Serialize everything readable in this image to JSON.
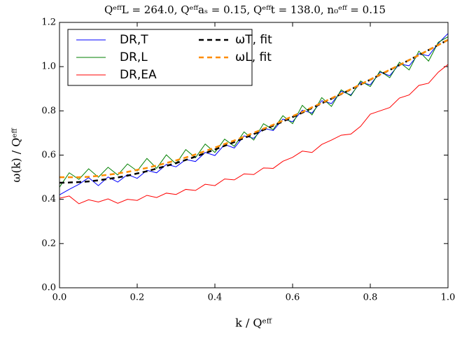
{
  "chart_data": {
    "type": "line",
    "title": "QᵉᶠᶠL = 264.0, Qᵉᶠᶠaₛ = 0.15, Qᵉᶠᶠt = 138.0, n₀ᵉᶠᶠ = 0.15",
    "xlabel": "k / Qᵉᶠᶠ",
    "ylabel": "ω(k) / Qᵉᶠᶠ",
    "x": [
      0,
      0.025,
      0.05,
      0.075,
      0.1,
      0.125,
      0.15,
      0.175,
      0.2,
      0.225,
      0.25,
      0.275,
      0.3,
      0.325,
      0.35,
      0.375,
      0.4,
      0.425,
      0.45,
      0.475,
      0.5,
      0.525,
      0.55,
      0.575,
      0.6,
      0.625,
      0.65,
      0.675,
      0.7,
      0.725,
      0.75,
      0.775,
      0.8,
      0.825,
      0.85,
      0.875,
      0.9,
      0.925,
      0.95,
      0.975,
      1.0
    ],
    "series": [
      {
        "name": "DR,T",
        "color": "#0000ff",
        "style": "solid",
        "values": [
          0.42,
          0.445,
          0.468,
          0.498,
          0.462,
          0.501,
          0.478,
          0.512,
          0.495,
          0.531,
          0.52,
          0.558,
          0.547,
          0.58,
          0.571,
          0.612,
          0.598,
          0.648,
          0.632,
          0.687,
          0.676,
          0.722,
          0.711,
          0.763,
          0.751,
          0.803,
          0.79,
          0.846,
          0.833,
          0.889,
          0.872,
          0.929,
          0.918,
          0.975,
          0.959,
          1.012,
          1.004,
          1.058,
          1.049,
          1.105,
          1.15
        ]
      },
      {
        "name": "DR,L",
        "color": "#008000",
        "style": "solid",
        "values": [
          0.455,
          0.52,
          0.49,
          0.538,
          0.5,
          0.545,
          0.51,
          0.56,
          0.528,
          0.585,
          0.54,
          0.601,
          0.56,
          0.625,
          0.588,
          0.65,
          0.612,
          0.672,
          0.64,
          0.705,
          0.668,
          0.742,
          0.715,
          0.778,
          0.742,
          0.825,
          0.782,
          0.86,
          0.82,
          0.895,
          0.868,
          0.935,
          0.91,
          0.98,
          0.95,
          1.02,
          0.985,
          1.07,
          1.025,
          1.11,
          1.135
        ]
      },
      {
        "name": "DR,EA",
        "color": "#ff0000",
        "style": "solid",
        "values": [
          0.405,
          0.415,
          0.38,
          0.398,
          0.388,
          0.402,
          0.382,
          0.4,
          0.395,
          0.418,
          0.408,
          0.428,
          0.422,
          0.445,
          0.44,
          0.468,
          0.462,
          0.492,
          0.488,
          0.515,
          0.512,
          0.542,
          0.54,
          0.572,
          0.59,
          0.618,
          0.612,
          0.648,
          0.668,
          0.69,
          0.695,
          0.73,
          0.785,
          0.8,
          0.815,
          0.858,
          0.872,
          0.915,
          0.925,
          0.975,
          1.01
        ]
      },
      {
        "name": "ωT, fit",
        "color": "#000000",
        "style": "dashed",
        "values": [
          0.475,
          0.476,
          0.478,
          0.481,
          0.486,
          0.492,
          0.499,
          0.507,
          0.517,
          0.527,
          0.539,
          0.551,
          0.564,
          0.578,
          0.593,
          0.609,
          0.625,
          0.642,
          0.659,
          0.677,
          0.695,
          0.714,
          0.733,
          0.752,
          0.772,
          0.792,
          0.813,
          0.834,
          0.855,
          0.876,
          0.897,
          0.919,
          0.941,
          0.963,
          0.985,
          1.007,
          1.03,
          1.052,
          1.075,
          1.098,
          1.121
        ]
      },
      {
        "name": "ωL, fit",
        "color": "#ff8c00",
        "style": "dashed",
        "values": [
          0.5,
          0.5,
          0.5,
          0.502,
          0.506,
          0.511,
          0.517,
          0.524,
          0.533,
          0.542,
          0.553,
          0.564,
          0.576,
          0.589,
          0.603,
          0.618,
          0.634,
          0.65,
          0.666,
          0.683,
          0.701,
          0.719,
          0.737,
          0.756,
          0.776,
          0.795,
          0.816,
          0.836,
          0.857,
          0.877,
          0.898,
          0.92,
          0.942,
          0.964,
          0.986,
          1.007,
          1.03,
          1.052,
          1.075,
          1.098,
          1.121
        ]
      }
    ],
    "xlim": [
      0,
      1.0
    ],
    "ylim": [
      0,
      1.2
    ],
    "xticks": [
      {
        "value": 0,
        "label": "0.0"
      },
      0.2,
      0.4,
      0.6,
      0.8,
      {
        "value": 1.0,
        "label": "1.0"
      }
    ],
    "yticks": [
      {
        "value": 0,
        "label": "0.0"
      },
      0.2,
      0.4,
      0.6,
      0.8,
      {
        "value": 1.0,
        "label": "1.0"
      },
      1.2
    ],
    "grid": false,
    "legend": "upper left",
    "legend_columns": 2
  }
}
